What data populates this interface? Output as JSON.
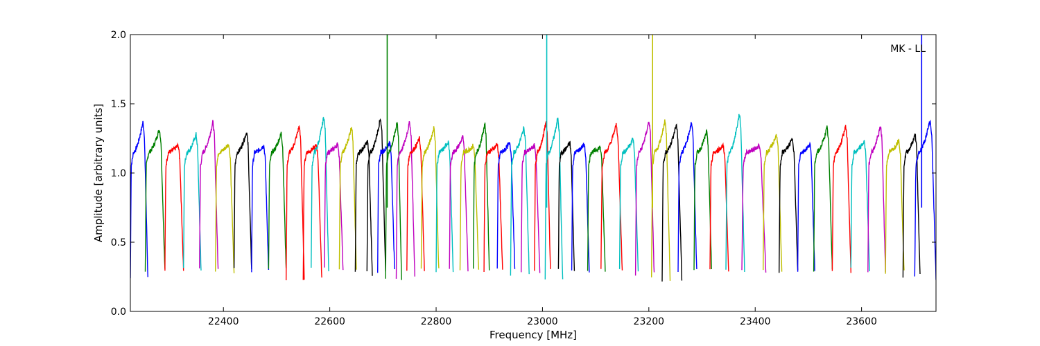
{
  "chart_data": {
    "type": "line",
    "title": "",
    "xlabel": "Frequency [MHz]",
    "ylabel": "Amplitude [arbitrary units]",
    "annotation": "MK - LL",
    "xlim": [
      22225,
      23740
    ],
    "ylim": [
      0.0,
      2.0
    ],
    "xticks": [
      22400,
      22600,
      22800,
      23000,
      23200,
      23400,
      23600
    ],
    "yticks": [
      0.0,
      0.5,
      1.0,
      1.5,
      2.0
    ],
    "xtick_labels": [
      "22400",
      "22600",
      "22800",
      "23000",
      "23200",
      "23400",
      "23600"
    ],
    "ytick_labels": [
      "0.0",
      "0.5",
      "1.0",
      "1.5",
      "2.0"
    ],
    "grid": false,
    "legend": "none",
    "color_cycle": [
      "#0000ff",
      "#008000",
      "#ff0000",
      "#00bfbf",
      "#bf00bf",
      "#bfbf00",
      "#000000"
    ],
    "segments": [
      {
        "start": 22225,
        "end": 22258,
        "color": "#0000ff",
        "peak": 1.37,
        "floor": 0.24
      },
      {
        "start": 22253,
        "end": 22290,
        "color": "#008000",
        "peak": 1.32,
        "floor": 0.3
      },
      {
        "start": 22290,
        "end": 22325,
        "color": "#ff0000",
        "peak": 1.2,
        "floor": 0.3
      },
      {
        "start": 22325,
        "end": 22358,
        "color": "#00bfbf",
        "peak": 1.28,
        "floor": 0.3
      },
      {
        "start": 22355,
        "end": 22390,
        "color": "#bf00bf",
        "peak": 1.37,
        "floor": 0.3
      },
      {
        "start": 22385,
        "end": 22420,
        "color": "#bfbf00",
        "peak": 1.21,
        "floor": 0.28
      },
      {
        "start": 22420,
        "end": 22453,
        "color": "#000000",
        "peak": 1.3,
        "floor": 0.3
      },
      {
        "start": 22453,
        "end": 22485,
        "color": "#0000ff",
        "peak": 1.2,
        "floor": 0.29
      },
      {
        "start": 22485,
        "end": 22518,
        "color": "#008000",
        "peak": 1.29,
        "floor": 0.3
      },
      {
        "start": 22518,
        "end": 22552,
        "color": "#ff0000",
        "peak": 1.34,
        "floor": 0.24
      },
      {
        "start": 22550,
        "end": 22585,
        "color": "#ff0000",
        "peak": 1.2,
        "floor": 0.24
      },
      {
        "start": 22565,
        "end": 22598,
        "color": "#00bfbf",
        "peak": 1.41,
        "floor": 0.3
      },
      {
        "start": 22590,
        "end": 22625,
        "color": "#bf00bf",
        "peak": 1.21,
        "floor": 0.3
      },
      {
        "start": 22618,
        "end": 22650,
        "color": "#bfbf00",
        "peak": 1.34,
        "floor": 0.29
      },
      {
        "start": 22648,
        "end": 22680,
        "color": "#000000",
        "peak": 1.23,
        "floor": 0.27
      },
      {
        "start": 22670,
        "end": 22705,
        "color": "#000000",
        "peak": 1.4,
        "floor": 0.3
      },
      {
        "start": 22690,
        "end": 22722,
        "color": "#0000ff",
        "peak": 1.22,
        "floor": 0.29
      },
      {
        "start": 22705,
        "end": 22735,
        "color": "#008000",
        "peak": 1.37,
        "floor": 0.24
      },
      {
        "start": 22725,
        "end": 22760,
        "color": "#bf00bf",
        "peak": 1.37,
        "floor": 0.24
      },
      {
        "start": 22745,
        "end": 22778,
        "color": "#ff0000",
        "peak": 1.25,
        "floor": 0.29
      },
      {
        "start": 22772,
        "end": 22805,
        "color": "#bfbf00",
        "peak": 1.33,
        "floor": 0.3
      },
      {
        "start": 22800,
        "end": 22832,
        "color": "#00bfbf",
        "peak": 1.23,
        "floor": 0.3
      },
      {
        "start": 22825,
        "end": 22860,
        "color": "#bf00bf",
        "peak": 1.26,
        "floor": 0.3
      },
      {
        "start": 22845,
        "end": 22880,
        "color": "#bfbf00",
        "peak": 1.2,
        "floor": 0.29
      },
      {
        "start": 22870,
        "end": 22900,
        "color": "#008000",
        "peak": 1.36,
        "floor": 0.3
      },
      {
        "start": 22890,
        "end": 22925,
        "color": "#ff0000",
        "peak": 1.21,
        "floor": 0.3
      },
      {
        "start": 22915,
        "end": 22948,
        "color": "#0000ff",
        "peak": 1.22,
        "floor": 0.3
      },
      {
        "start": 22940,
        "end": 22975,
        "color": "#00bfbf",
        "peak": 1.33,
        "floor": 0.27
      },
      {
        "start": 22960,
        "end": 22995,
        "color": "#bf00bf",
        "peak": 1.2,
        "floor": 0.29
      },
      {
        "start": 22985,
        "end": 23015,
        "color": "#ff0000",
        "peak": 1.37,
        "floor": 0.29
      },
      {
        "start": 23005,
        "end": 23038,
        "color": "#00bfbf",
        "peak": 1.4,
        "floor": 0.22
      },
      {
        "start": 23030,
        "end": 23060,
        "color": "#000000",
        "peak": 1.22,
        "floor": 0.29
      },
      {
        "start": 23055,
        "end": 23088,
        "color": "#0000ff",
        "peak": 1.21,
        "floor": 0.29
      },
      {
        "start": 23085,
        "end": 23118,
        "color": "#008000",
        "peak": 1.19,
        "floor": 0.3
      },
      {
        "start": 23110,
        "end": 23150,
        "color": "#ff0000",
        "peak": 1.35,
        "floor": 0.3
      },
      {
        "start": 23145,
        "end": 23180,
        "color": "#00bfbf",
        "peak": 1.25,
        "floor": 0.3
      },
      {
        "start": 23175,
        "end": 23210,
        "color": "#bf00bf",
        "peak": 1.38,
        "floor": 0.27
      },
      {
        "start": 23205,
        "end": 23240,
        "color": "#bfbf00",
        "peak": 1.38,
        "floor": 0.23
      },
      {
        "start": 23225,
        "end": 23262,
        "color": "#000000",
        "peak": 1.35,
        "floor": 0.23
      },
      {
        "start": 23255,
        "end": 23290,
        "color": "#0000ff",
        "peak": 1.37,
        "floor": 0.3
      },
      {
        "start": 23285,
        "end": 23318,
        "color": "#008000",
        "peak": 1.3,
        "floor": 0.3
      },
      {
        "start": 23315,
        "end": 23350,
        "color": "#ff0000",
        "peak": 1.2,
        "floor": 0.3
      },
      {
        "start": 23345,
        "end": 23380,
        "color": "#00bfbf",
        "peak": 1.43,
        "floor": 0.3
      },
      {
        "start": 23375,
        "end": 23420,
        "color": "#bf00bf",
        "peak": 1.2,
        "floor": 0.29
      },
      {
        "start": 23415,
        "end": 23450,
        "color": "#bfbf00",
        "peak": 1.28,
        "floor": 0.29
      },
      {
        "start": 23445,
        "end": 23480,
        "color": "#000000",
        "peak": 1.25,
        "floor": 0.29
      },
      {
        "start": 23480,
        "end": 23512,
        "color": "#0000ff",
        "peak": 1.21,
        "floor": 0.29
      },
      {
        "start": 23510,
        "end": 23545,
        "color": "#008000",
        "peak": 1.33,
        "floor": 0.3
      },
      {
        "start": 23545,
        "end": 23580,
        "color": "#ff0000",
        "peak": 1.34,
        "floor": 0.29
      },
      {
        "start": 23580,
        "end": 23615,
        "color": "#00bfbf",
        "peak": 1.23,
        "floor": 0.3
      },
      {
        "start": 23612,
        "end": 23645,
        "color": "#bf00bf",
        "peak": 1.34,
        "floor": 0.29
      },
      {
        "start": 23645,
        "end": 23680,
        "color": "#bfbf00",
        "peak": 1.24,
        "floor": 0.28
      },
      {
        "start": 23678,
        "end": 23710,
        "color": "#000000",
        "peak": 1.28,
        "floor": 0.26
      },
      {
        "start": 23700,
        "end": 23740,
        "color": "#0000ff",
        "peak": 1.38,
        "floor": 0.24
      }
    ],
    "spikes": [
      {
        "x": 22708,
        "y": 2.0,
        "color": "#008000"
      },
      {
        "x": 23008,
        "y": 2.0,
        "color": "#00bfbf"
      },
      {
        "x": 23207,
        "y": 2.0,
        "color": "#bfbf00"
      },
      {
        "x": 23713,
        "y": 2.0,
        "color": "#0000ff"
      }
    ]
  }
}
